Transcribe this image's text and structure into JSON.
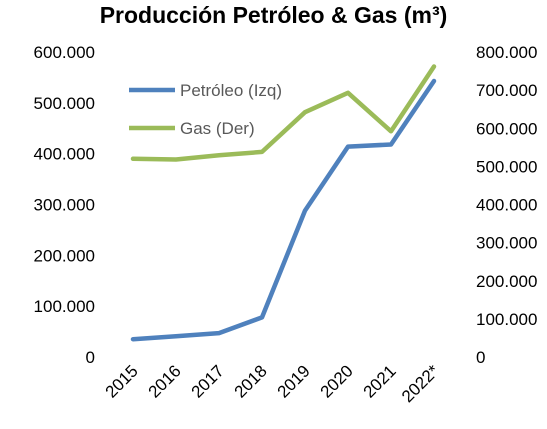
{
  "chart_data": {
    "type": "line",
    "title": "Producción Petróleo & Gas (m³)",
    "categories": [
      "2015",
      "2016",
      "2017",
      "2018",
      "2019",
      "2020",
      "2021",
      "2022*"
    ],
    "series": [
      {
        "name": "Petróleo (Izq)",
        "axis": "left",
        "color": "#4f81bd",
        "values": [
          35000,
          41000,
          47000,
          78000,
          288000,
          414000,
          418000,
          543000
        ]
      },
      {
        "name": "Gas (Der)",
        "axis": "right",
        "color": "#9bbb59",
        "values": [
          520000,
          518000,
          529000,
          538000,
          642000,
          693000,
          592000,
          762000
        ]
      }
    ],
    "left_axis": {
      "ylim": [
        0,
        600000
      ],
      "ticks": [
        0,
        100000,
        200000,
        300000,
        400000,
        500000,
        600000
      ],
      "tick_labels": [
        "0",
        "100.000",
        "200.000",
        "300.000",
        "400.000",
        "500.000",
        "600.000"
      ]
    },
    "right_axis": {
      "ylim": [
        0,
        800000
      ],
      "ticks": [
        0,
        100000,
        200000,
        300000,
        400000,
        500000,
        600000,
        700000,
        800000
      ],
      "tick_labels": [
        "0",
        "100.000",
        "200.000",
        "300.000",
        "400.000",
        "500.000",
        "600.000",
        "700.000",
        "800.000"
      ]
    },
    "grid": false,
    "legend_position": "top-left"
  }
}
